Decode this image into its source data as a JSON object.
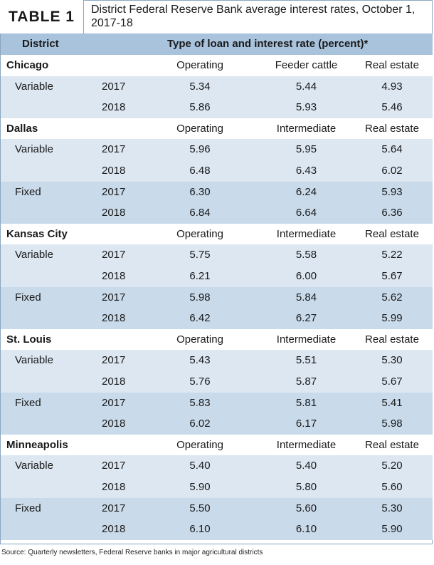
{
  "title": {
    "tag": "TABLE 1",
    "text": "District Federal Reserve Bank average interest rates, October 1, 2017-18"
  },
  "header": {
    "district": "District",
    "type": "Type of loan and interest rate (percent)*"
  },
  "districts": [
    {
      "name": "Chicago",
      "cols": [
        "Operating",
        "Feeder cattle",
        "Real estate"
      ],
      "groups": [
        {
          "label": "Variable",
          "rows": [
            [
              "2017",
              "5.34",
              "5.44",
              "4.93"
            ],
            [
              "2018",
              "5.86",
              "5.93",
              "5.46"
            ]
          ]
        }
      ]
    },
    {
      "name": "Dallas",
      "cols": [
        "Operating",
        "Intermediate",
        "Real estate"
      ],
      "groups": [
        {
          "label": "Variable",
          "rows": [
            [
              "2017",
              "5.96",
              "5.95",
              "5.64"
            ],
            [
              "2018",
              "6.48",
              "6.43",
              "6.02"
            ]
          ]
        },
        {
          "label": "Fixed",
          "rows": [
            [
              "2017",
              "6.30",
              "6.24",
              "5.93"
            ],
            [
              "2018",
              "6.84",
              "6.64",
              "6.36"
            ]
          ]
        }
      ]
    },
    {
      "name": "Kansas City",
      "cols": [
        "Operating",
        "Intermediate",
        "Real estate"
      ],
      "groups": [
        {
          "label": "Variable",
          "rows": [
            [
              "2017",
              "5.75",
              "5.58",
              "5.22"
            ],
            [
              "2018",
              "6.21",
              "6.00",
              "5.67"
            ]
          ]
        },
        {
          "label": "Fixed",
          "rows": [
            [
              "2017",
              "5.98",
              "5.84",
              "5.62"
            ],
            [
              "2018",
              "6.42",
              "6.27",
              "5.99"
            ]
          ]
        }
      ]
    },
    {
      "name": "St. Louis",
      "cols": [
        "Operating",
        "Intermediate",
        "Real estate"
      ],
      "groups": [
        {
          "label": "Variable",
          "rows": [
            [
              "2017",
              "5.43",
              "5.51",
              "5.30"
            ],
            [
              "2018",
              "5.76",
              "5.87",
              "5.67"
            ]
          ]
        },
        {
          "label": "Fixed",
          "rows": [
            [
              "2017",
              "5.83",
              "5.81",
              "5.41"
            ],
            [
              "2018",
              "6.02",
              "6.17",
              "5.98"
            ]
          ]
        }
      ]
    },
    {
      "name": "Minneapolis",
      "cols": [
        "Operating",
        "Intermediate",
        "Real estate"
      ],
      "groups": [
        {
          "label": "Variable",
          "rows": [
            [
              "2017",
              "5.40",
              "5.40",
              "5.20"
            ],
            [
              "2018",
              "5.90",
              "5.80",
              "5.60"
            ]
          ]
        },
        {
          "label": "Fixed",
          "rows": [
            [
              "2017",
              "5.50",
              "5.60",
              "5.30"
            ],
            [
              "2018",
              "6.10",
              "6.10",
              "5.90"
            ]
          ]
        }
      ]
    }
  ],
  "source": "Source: Quarterly newsletters, Federal Reserve banks in major agricultural districts"
}
